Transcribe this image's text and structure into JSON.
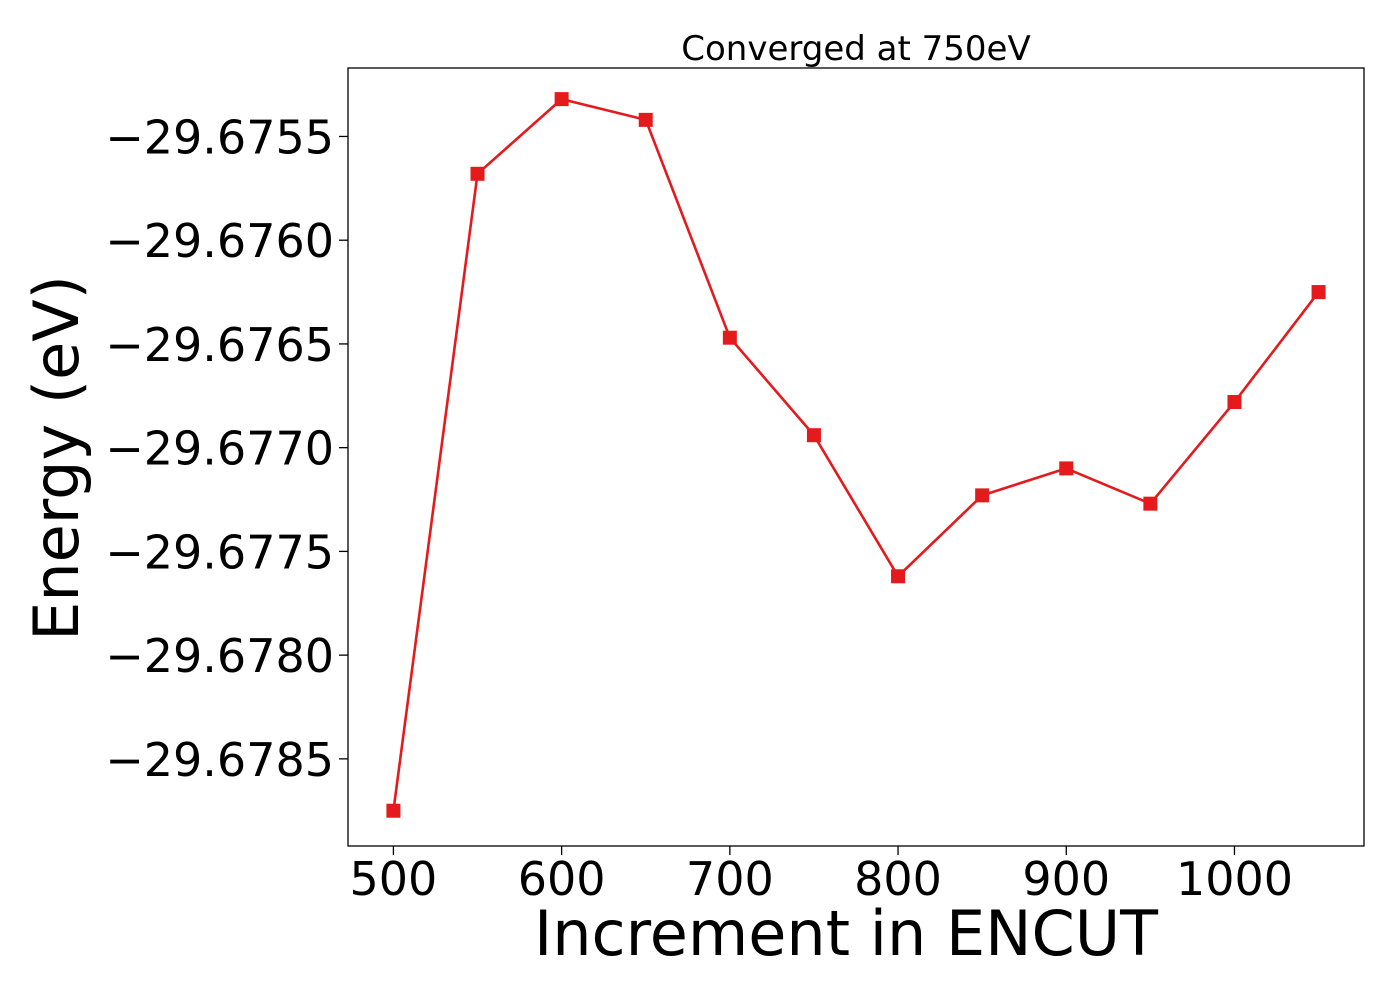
{
  "chart_data": {
    "type": "line",
    "title": "Converged at 750eV",
    "xlabel": "Increment in ENCUT",
    "ylabel": "Energy (eV)",
    "x": [
      500,
      550,
      600,
      650,
      700,
      750,
      800,
      850,
      900,
      950,
      1000,
      1050
    ],
    "series": [
      {
        "values": [
          -29.67875,
          -29.67568,
          -29.67532,
          -29.67542,
          -29.67647,
          -29.67694,
          -29.67762,
          -29.67723,
          -29.6771,
          -29.67727,
          -29.67678,
          -29.67625
        ],
        "color": "#e41a1c",
        "marker": "square"
      }
    ],
    "xlim": [
      473,
      1077
    ],
    "ylim": [
      -29.67892,
      -29.67517
    ],
    "xticks": [
      500,
      600,
      700,
      800,
      900,
      1000
    ],
    "xtick_labels": [
      "500",
      "600",
      "700",
      "800",
      "900",
      "1000"
    ],
    "yticks": [
      -29.6785,
      -29.678,
      -29.6775,
      -29.677,
      -29.6765,
      -29.676,
      -29.6755
    ],
    "ytick_labels": [
      "−29.6785",
      "−29.6780",
      "−29.6775",
      "−29.6770",
      "−29.6765",
      "−29.6760",
      "−29.6755"
    ],
    "grid": false,
    "legend": "none"
  }
}
